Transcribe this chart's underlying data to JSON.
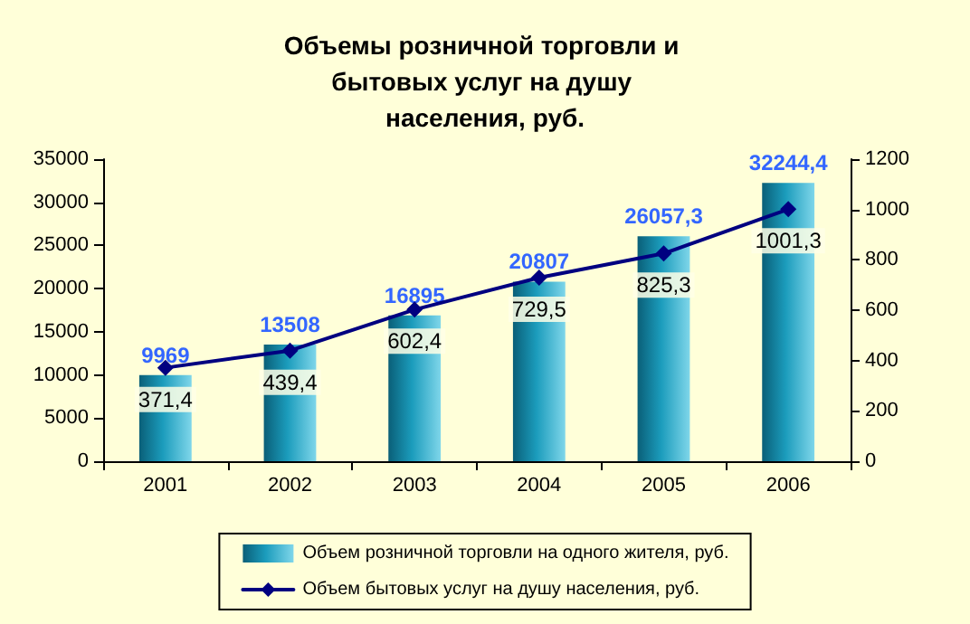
{
  "chart_data": {
    "type": "bar",
    "title": "Объемы розничной торговли и бытовых услуг на душу населения, руб.",
    "categories": [
      "2001",
      "2002",
      "2003",
      "2004",
      "2005",
      "2006"
    ],
    "series": [
      {
        "name": "Объем розничной торговли на одного жителя, руб.",
        "color": "#1b9cbc",
        "values": [
          9969,
          13508,
          16895,
          20807,
          26057.3,
          32244.4
        ],
        "value_labels": [
          "9969",
          "13508",
          "16895",
          "20807",
          "26057,3",
          "32244,4"
        ]
      },
      {
        "name": "Объем бытовых услуг на душу населения, руб.",
        "type": "line",
        "axis": "y2",
        "color": "#000080",
        "values": [
          371.4,
          439.4,
          602.4,
          729.5,
          825.3,
          1001.3
        ],
        "value_labels": [
          "371,4",
          "439,4",
          "602,4",
          "729,5",
          "825,3",
          "1001,3"
        ]
      }
    ],
    "ylim": [
      0,
      35000
    ],
    "yticks": [
      0,
      5000,
      10000,
      15000,
      20000,
      25000,
      30000,
      35000
    ],
    "y2lim": [
      0,
      1200
    ],
    "y2ticks": [
      0,
      200,
      400,
      600,
      800,
      1000,
      1200
    ],
    "legend": "bottom",
    "marker": "diamond",
    "grid": false
  }
}
